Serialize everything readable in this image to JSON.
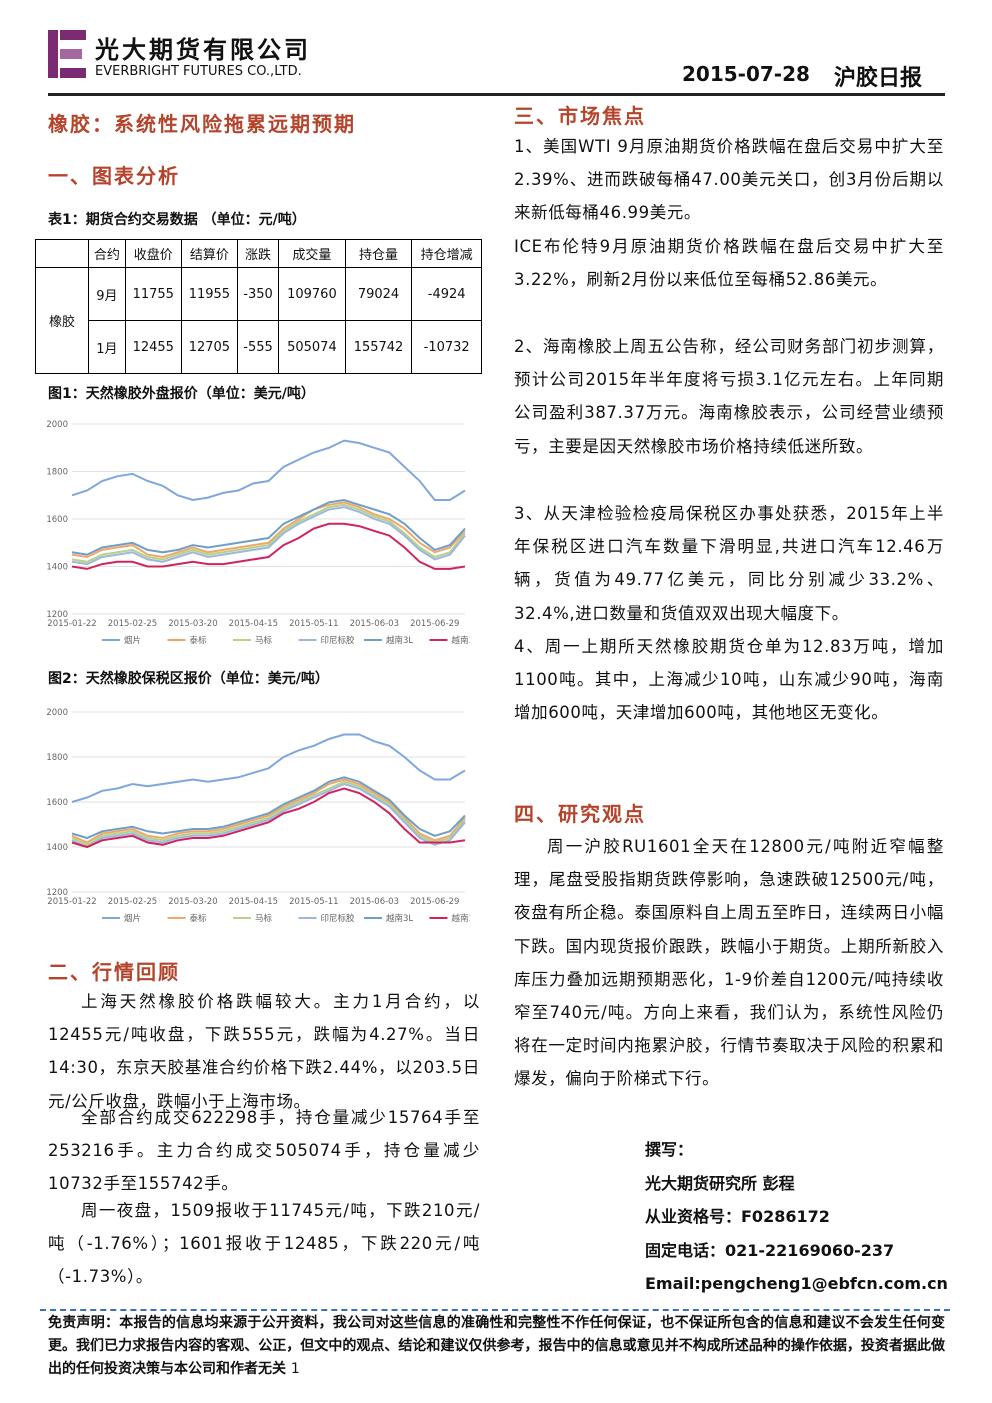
{
  "header": {
    "company_cn": "光大期货有限公司",
    "company_en": "EVERBRIGHT FUTURES CO.,LTD.",
    "date": "2015-07-28",
    "report_name": "沪胶日报"
  },
  "left": {
    "title": "橡胶：系统性风险拖累远期预期",
    "section1": "一、图表分析",
    "table_caption": "表1：期货合约交易数据  （单位：元/吨）",
    "table": {
      "header": [
        "合约",
        "收盘价",
        "结算价",
        "涨跌",
        "成交量",
        "持仓量",
        "持仓增减"
      ],
      "row_label": "橡胶",
      "rows": [
        [
          "9月",
          11755,
          11955,
          -350,
          109760,
          79024,
          -4924
        ],
        [
          "1月",
          12455,
          12705,
          -555,
          505074,
          155742,
          -10732
        ]
      ]
    },
    "fig1_caption": "图1：天然橡胶外盘报价（单位：美元/吨）",
    "fig2_caption": "图2：天然橡胶保税区报价（单位：美元/吨）",
    "section2": "二、行情回顾",
    "paragraphs": [
      "上海天然橡胶价格跌幅较大。主力1月合约，以12455元/吨收盘，下跌555元，跌幅为4.27%。当日14:30，东京天胶基准合约价格下跌2.44%，以203.5日元/公斤收盘，跌幅小于上海市场。",
      "全部合约成交622298手，持仓量减少15764手至253216手。主力合约成交505074手，持仓量减少10732手至155742手。",
      "周一夜盘，1509报收于11745元/吨，下跌210元/吨（-1.76%）；1601报收于12485，下跌220元/吨（-1.73%）。"
    ]
  },
  "right": {
    "section3": "三、市场焦点",
    "paragraphs": [
      "1、美国WTI 9月原油期货价格跌幅在盘后交易中扩大至2.39%、进而跌破每桶47.00美元关口，创3月份后期以来新低每桶46.99美元。",
      "ICE布伦特9月原油期货价格跌幅在盘后交易中扩大至3.22%，刷新2月份以来低位至每桶52.86美元。",
      "2、海南橡胶上周五公告称，经公司财务部门初步测算，预计公司2015年半年度将亏损3.1亿元左右。上年同期公司盈利387.37万元。海南橡胶表示，公司经营业绩预亏，主要是因天然橡胶市场价格持续低迷所致。",
      "3、从天津检验检疫局保税区办事处获悉，2015年上半年保税区进口汽车数量下滑明显,共进口汽车12.46万辆，货值为49.77亿美元，同比分别减少33.2%、32.4%,进口数量和货值双双出现大幅度下。",
      "4、周一上期所天然橡胶期货仓单为12.83万吨，增加1100吨。其中，上海减少10吨，山东减少90吨，海南增加600吨，天津增加600吨，其他地区无变化。"
    ],
    "section4": "四、研究观点",
    "view": "周一沪胶RU1601全天在12800元/吨附近窄幅整理，尾盘受股指期货跌停影响，急速跌破12500元/吨，夜盘有所企稳。泰国原料自上周五至昨日，连续两日小幅下跌。国内现货报价跟跌，跌幅小于期货。上期所新胶入库压力叠加远期预期恶化，1-9价差自1200元/吨持续收窄至740元/吨。方向上来看，我们认为，系统性风险仍将在一定时间内拖累沪胶，行情节奏取决于风险的积累和爆发，偏向于阶梯式下行。",
    "author": [
      "撰写：",
      "光大期货研究所 彭程",
      "从业资格号：F0286172",
      "固定电话：021-22169060-237",
      "Email:pengcheng1@ebfcn.com.cn"
    ]
  },
  "disclaimer": "免责声明：本报告的信息均来源于公开资料，我公司对这些信息的准确性和完整性不作任何保证，也不保证所包含的信息和建议不会发生任何变更。我们已力求报告内容的客观、公正，但文中的观点、结论和建议仅供参考，报告中的信息或意见并不构成所述品种的操作依据，投资者据此做出的任何投资决策与本公司和作者无关",
  "page_number": "1",
  "chart_data": [
    {
      "type": "line",
      "categories": [
        "2015-01-22",
        null,
        null,
        null,
        "2015-02-25",
        null,
        null,
        null,
        "2015-03-20",
        null,
        null,
        null,
        "2015-04-15",
        null,
        null,
        null,
        "2015-05-11",
        null,
        null,
        null,
        "2015-06-03",
        null,
        null,
        null,
        "2015-06-29",
        null,
        null
      ],
      "ylim": [
        1200,
        2000
      ],
      "yticks": [
        1200,
        1400,
        1600,
        1800,
        2000
      ],
      "grid": true,
      "series": [
        {
          "name": "烟片",
          "color": "#7fa7dc",
          "values": [
            1700,
            1720,
            1760,
            1780,
            1790,
            1760,
            1740,
            1700,
            1680,
            1690,
            1710,
            1720,
            1750,
            1760,
            1820,
            1850,
            1880,
            1900,
            1930,
            1920,
            1900,
            1880,
            1820,
            1760,
            1680,
            1680,
            1720
          ]
        },
        {
          "name": "泰标",
          "color": "#f0a868",
          "values": [
            1450,
            1440,
            1470,
            1480,
            1490,
            1450,
            1440,
            1460,
            1480,
            1460,
            1470,
            1480,
            1490,
            1500,
            1560,
            1600,
            1640,
            1660,
            1670,
            1650,
            1620,
            1600,
            1560,
            1500,
            1460,
            1480,
            1550
          ]
        },
        {
          "name": "马标",
          "color": "#b5d38a",
          "values": [
            1430,
            1420,
            1450,
            1460,
            1470,
            1440,
            1430,
            1450,
            1470,
            1450,
            1460,
            1470,
            1480,
            1490,
            1550,
            1590,
            1620,
            1650,
            1660,
            1640,
            1610,
            1590,
            1540,
            1480,
            1440,
            1460,
            1540
          ]
        },
        {
          "name": "印尼标胶",
          "color": "#9fb6e0",
          "values": [
            1420,
            1410,
            1440,
            1450,
            1460,
            1430,
            1420,
            1440,
            1460,
            1440,
            1450,
            1460,
            1470,
            1480,
            1540,
            1580,
            1610,
            1640,
            1650,
            1630,
            1600,
            1580,
            1530,
            1470,
            1430,
            1450,
            1530
          ]
        },
        {
          "name": "越南3L",
          "color": "#6f9fc8",
          "values": [
            1460,
            1450,
            1480,
            1490,
            1500,
            1470,
            1460,
            1470,
            1490,
            1480,
            1490,
            1500,
            1510,
            1520,
            1580,
            1610,
            1640,
            1670,
            1680,
            1660,
            1640,
            1620,
            1580,
            1520,
            1470,
            1490,
            1560
          ]
        },
        {
          "name": "越南10号",
          "color": "#d0245e",
          "values": [
            1400,
            1390,
            1410,
            1420,
            1420,
            1400,
            1400,
            1410,
            1420,
            1410,
            1410,
            1420,
            1430,
            1440,
            1490,
            1520,
            1560,
            1580,
            1580,
            1570,
            1550,
            1530,
            1480,
            1420,
            1390,
            1390,
            1400
          ]
        }
      ]
    },
    {
      "type": "line",
      "categories": [
        "2015-01-22",
        null,
        null,
        null,
        "2015-02-25",
        null,
        null,
        null,
        "2015-03-20",
        null,
        null,
        null,
        "2015-04-15",
        null,
        null,
        null,
        "2015-05-11",
        null,
        null,
        null,
        "2015-06-03",
        null,
        null,
        null,
        "2015-06-29",
        null,
        null
      ],
      "ylim": [
        1200,
        2000
      ],
      "yticks": [
        1200,
        1400,
        1600,
        1800,
        2000
      ],
      "grid": true,
      "series": [
        {
          "name": "烟片",
          "color": "#7fa7dc",
          "values": [
            1600,
            1620,
            1650,
            1660,
            1680,
            1670,
            1680,
            1690,
            1700,
            1690,
            1700,
            1710,
            1730,
            1750,
            1800,
            1830,
            1850,
            1880,
            1900,
            1900,
            1870,
            1850,
            1800,
            1740,
            1700,
            1700,
            1740
          ]
        },
        {
          "name": "泰标",
          "color": "#f0a868",
          "values": [
            1450,
            1420,
            1460,
            1470,
            1480,
            1450,
            1440,
            1460,
            1470,
            1470,
            1480,
            1500,
            1520,
            1540,
            1580,
            1610,
            1640,
            1680,
            1700,
            1680,
            1640,
            1600,
            1530,
            1460,
            1430,
            1450,
            1530
          ]
        },
        {
          "name": "马标",
          "color": "#b5d38a",
          "values": [
            1440,
            1410,
            1450,
            1460,
            1470,
            1440,
            1430,
            1450,
            1460,
            1460,
            1470,
            1490,
            1510,
            1530,
            1570,
            1600,
            1630,
            1660,
            1690,
            1670,
            1630,
            1590,
            1520,
            1450,
            1420,
            1440,
            1520
          ]
        },
        {
          "name": "印尼标胶",
          "color": "#9fb6e0",
          "values": [
            1430,
            1400,
            1440,
            1450,
            1460,
            1430,
            1420,
            1440,
            1450,
            1450,
            1460,
            1480,
            1500,
            1520,
            1560,
            1590,
            1620,
            1650,
            1680,
            1660,
            1620,
            1580,
            1510,
            1440,
            1410,
            1430,
            1510
          ]
        },
        {
          "name": "越南3L",
          "color": "#6f9fc8",
          "values": [
            1460,
            1440,
            1470,
            1480,
            1490,
            1470,
            1460,
            1470,
            1480,
            1480,
            1490,
            1510,
            1530,
            1550,
            1590,
            1620,
            1650,
            1690,
            1710,
            1690,
            1650,
            1610,
            1540,
            1480,
            1450,
            1470,
            1540
          ]
        },
        {
          "name": "越南10号",
          "color": "#d0245e",
          "values": [
            1420,
            1400,
            1430,
            1440,
            1450,
            1420,
            1410,
            1430,
            1440,
            1440,
            1450,
            1470,
            1490,
            1510,
            1550,
            1570,
            1600,
            1640,
            1660,
            1640,
            1600,
            1550,
            1480,
            1420,
            1420,
            1420,
            1430
          ]
        }
      ]
    }
  ]
}
